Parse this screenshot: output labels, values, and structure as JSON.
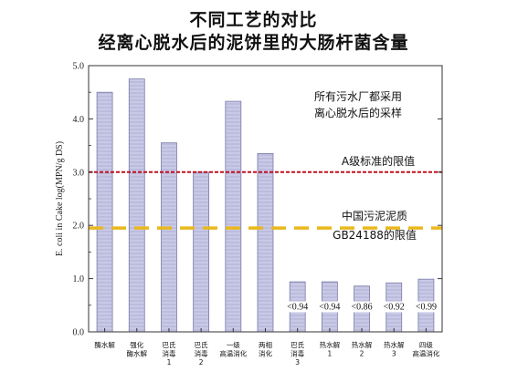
{
  "title_line1": "不同工艺的对比",
  "title_line2": "经离心脱水后的泥饼里的大肠杆菌含量",
  "annotations": {
    "note_line1": "所有污水厂都采用",
    "note_line2": "离心脱水后的采样",
    "classA_label": "A级标准的限值",
    "gb_line1": "中国污泥泥质",
    "gb_line2": "GB24188的限值"
  },
  "colors": {
    "bar_fill": "#c9c9e6",
    "bar_stroke": "#7a7aa8",
    "classA_line": "#c0101f",
    "gb_line": "#e9b81c"
  },
  "chart_data": {
    "type": "bar",
    "ylabel": "E. coli in Cake log(MPN/g DS)",
    "ylim": [
      0,
      5
    ],
    "yticks": [
      "0.0",
      "1.0",
      "2.0",
      "3.0",
      "4.0",
      "5.0"
    ],
    "grid": false,
    "categories": [
      [
        "酶水解"
      ],
      [
        "强化",
        "酶水解"
      ],
      [
        "巴氏",
        "消毒",
        "1"
      ],
      [
        "巴氏",
        "消毒",
        "2"
      ],
      [
        "一级",
        "高温消化"
      ],
      [
        "两相",
        "消化"
      ],
      [
        "巴氏",
        "消毒",
        "3"
      ],
      [
        "热水解",
        "1"
      ],
      [
        "热水解",
        "2"
      ],
      [
        "热水解",
        "3"
      ],
      [
        "四级",
        "高温消化"
      ]
    ],
    "values": [
      4.5,
      4.75,
      3.55,
      3.0,
      4.33,
      3.35,
      0.94,
      0.94,
      0.86,
      0.92,
      0.99
    ],
    "value_labels": [
      "",
      "",
      "",
      "",
      "",
      "",
      "<0.94",
      "<0.94",
      "<0.86",
      "<0.92",
      "<0.99"
    ],
    "reference_lines": [
      {
        "value": 3.0,
        "label": "A级标准的限值",
        "style": "dashed"
      },
      {
        "value": 1.95,
        "label": "GB24188的限值",
        "style": "dashed"
      }
    ]
  }
}
